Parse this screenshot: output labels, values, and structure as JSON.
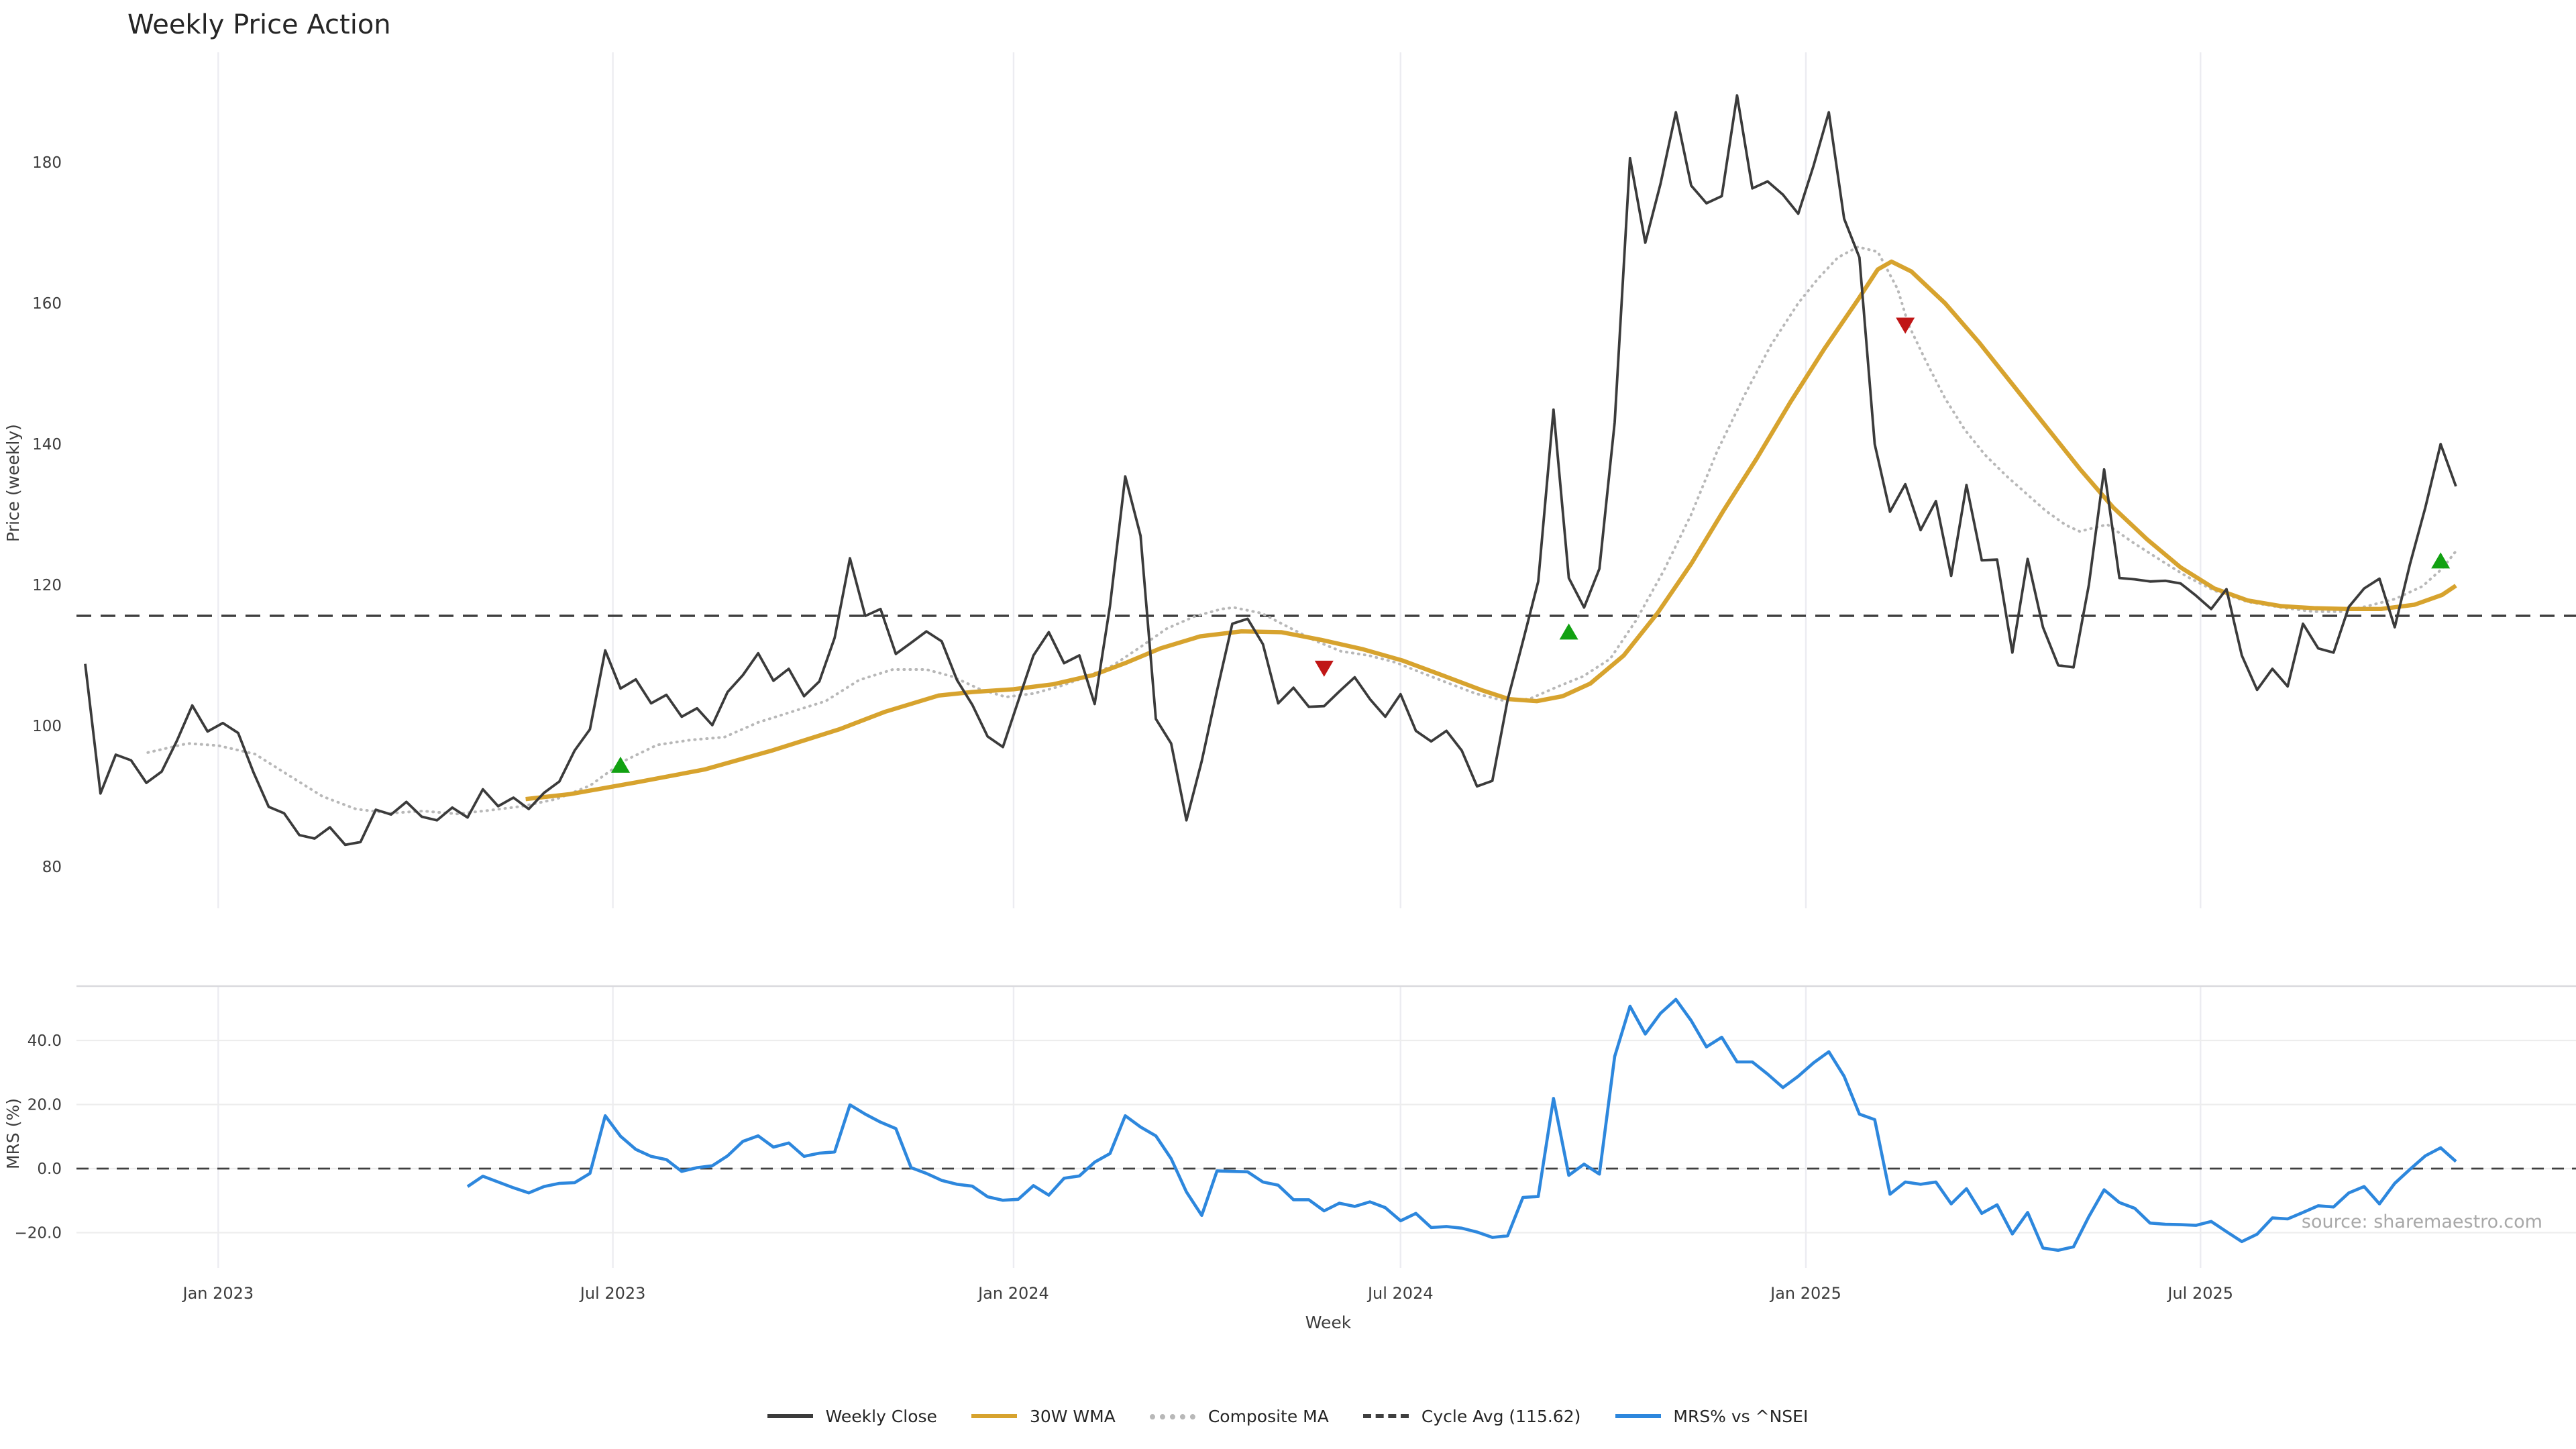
{
  "title": "Weekly Price Action",
  "source": "source: sharemaestro.com",
  "axes": {
    "top": {
      "ylabel": "Price (weekly)",
      "yticks": [
        "180",
        "160",
        "140",
        "120",
        "100",
        "80"
      ],
      "ytick_values": [
        180,
        160,
        140,
        120,
        100,
        80
      ]
    },
    "bottom": {
      "ylabel": "MRS (%)",
      "yticks": [
        "40.0",
        "20.0",
        "0.0",
        "−20.0"
      ],
      "ytick_values": [
        40,
        20,
        0,
        -20
      ]
    },
    "x": {
      "label": "Week",
      "ticks": [
        {
          "label": "Jan 2023",
          "week": 8.7
        },
        {
          "label": "Jul 2023",
          "week": 34.5
        },
        {
          "label": "Jan 2024",
          "week": 60.7
        },
        {
          "label": "Jul 2024",
          "week": 86.0
        },
        {
          "label": "Jan 2025",
          "week": 112.5
        },
        {
          "label": "Jul 2025",
          "week": 138.3
        }
      ]
    }
  },
  "legend": {
    "items": [
      {
        "label": "Weekly Close",
        "color": "#3b3b3b",
        "style": "solid"
      },
      {
        "label": "30W WMA",
        "color": "#d7a32e",
        "style": "solid"
      },
      {
        "label": "Composite MA",
        "color": "#b8b8b8",
        "style": "dotted"
      },
      {
        "label": "Cycle Avg (115.62)",
        "color": "#3f3f3f",
        "style": "dashed"
      },
      {
        "label": "MRS% vs ^NSEI",
        "color": "#2d87dd",
        "style": "solid"
      }
    ]
  },
  "colors": {
    "weekly_close": "#3b3b3b",
    "wma": "#d7a32e",
    "composite": "#b8b8b8",
    "cycle_avg": "#3f3f3f",
    "mrs": "#2d87dd",
    "signal_up": "#12a112",
    "signal_down": "#c01616",
    "grid": "#ececf1",
    "grid_h": "#ededed",
    "spine": "#d9d9de",
    "tick_text": "#3d3d3d"
  },
  "chart_data": {
    "type": "line",
    "x_unit": "week-index",
    "cycle_avg": 115.62,
    "top_ylim": [
      74,
      196
    ],
    "bottom_ylim": [
      -30,
      58
    ],
    "weekly_close": [
      108.8,
      90.4,
      95.9,
      95.1,
      91.9,
      93.5,
      97.9,
      102.9,
      99.2,
      100.4,
      99.0,
      93.4,
      88.5,
      87.6,
      84.5,
      84.0,
      85.6,
      83.1,
      83.5,
      88.1,
      87.4,
      89.2,
      87.1,
      86.6,
      88.4,
      87.0,
      91.0,
      88.6,
      89.8,
      88.2,
      90.5,
      92.1,
      96.5,
      99.5,
      110.7,
      105.3,
      106.6,
      103.2,
      104.4,
      101.3,
      102.5,
      100.1,
      104.8,
      107.2,
      110.3,
      106.4,
      108.1,
      104.2,
      106.3,
      112.5,
      123.8,
      115.6,
      116.6,
      110.2,
      111.8,
      113.4,
      112.0,
      106.5,
      103.0,
      98.5,
      97.0,
      103.5,
      110.0,
      113.3,
      108.9,
      110.0,
      103.1,
      117.0,
      135.4,
      127.0,
      101.0,
      97.5,
      86.6,
      95.0,
      105.0,
      114.5,
      115.2,
      111.6,
      103.2,
      105.4,
      102.7,
      102.8,
      104.9,
      106.9,
      103.8,
      101.3,
      104.5,
      99.3,
      97.8,
      99.3,
      96.5,
      91.4,
      92.2,
      103.7,
      112.0,
      120.5,
      144.9,
      121.0,
      116.8,
      122.3,
      143.1,
      180.6,
      168.6,
      177.0,
      187.1,
      176.7,
      174.2,
      175.2,
      189.5,
      176.3,
      177.3,
      175.4,
      172.7,
      179.5,
      187.1,
      172.0,
      166.5,
      140.0,
      130.4,
      134.3,
      127.8,
      131.9,
      121.3,
      134.2,
      123.5,
      123.6,
      110.4,
      123.7,
      114.0,
      108.6,
      108.3,
      120.0,
      136.4,
      121.0,
      120.8,
      120.5,
      120.6,
      120.2,
      118.5,
      116.6,
      119.4,
      110.0,
      105.1,
      108.1,
      105.6,
      114.5,
      111.0,
      110.4,
      116.9,
      119.5,
      120.9,
      114.0,
      123.0,
      131.0,
      140.0,
      134.0
    ],
    "wma_30w": [
      [
        28.8,
        89.6
      ],
      [
        31.7,
        90.3
      ],
      [
        36.1,
        92.0
      ],
      [
        40.5,
        93.8
      ],
      [
        44.9,
        96.5
      ],
      [
        49.3,
        99.5
      ],
      [
        52.3,
        102.0
      ],
      [
        55.8,
        104.3
      ],
      [
        58.0,
        104.8
      ],
      [
        60.7,
        105.2
      ],
      [
        63.3,
        105.9
      ],
      [
        65.9,
        107.2
      ],
      [
        68.1,
        109.0
      ],
      [
        70.3,
        111.0
      ],
      [
        72.9,
        112.7
      ],
      [
        75.6,
        113.4
      ],
      [
        78.2,
        113.3
      ],
      [
        80.8,
        112.2
      ],
      [
        83.5,
        110.9
      ],
      [
        86.1,
        109.3
      ],
      [
        88.7,
        107.2
      ],
      [
        91.4,
        105.0
      ],
      [
        93.1,
        103.8
      ],
      [
        94.9,
        103.5
      ],
      [
        96.6,
        104.2
      ],
      [
        98.4,
        106.0
      ],
      [
        100.6,
        110.0
      ],
      [
        102.8,
        116.0
      ],
      [
        105.0,
        123.0
      ],
      [
        107.1,
        130.5
      ],
      [
        109.3,
        138.0
      ],
      [
        111.5,
        146.0
      ],
      [
        113.7,
        153.5
      ],
      [
        115.9,
        160.5
      ],
      [
        117.2,
        164.8
      ],
      [
        118.1,
        165.9
      ],
      [
        119.4,
        164.5
      ],
      [
        121.6,
        160.0
      ],
      [
        123.8,
        154.5
      ],
      [
        126.0,
        148.5
      ],
      [
        128.2,
        142.5
      ],
      [
        130.4,
        136.5
      ],
      [
        132.6,
        131.0
      ],
      [
        134.8,
        126.5
      ],
      [
        137.0,
        122.5
      ],
      [
        139.2,
        119.5
      ],
      [
        141.4,
        117.8
      ],
      [
        143.6,
        117.0
      ],
      [
        145.7,
        116.7
      ],
      [
        147.9,
        116.6
      ],
      [
        150.1,
        116.6
      ],
      [
        152.3,
        117.2
      ],
      [
        154.1,
        118.6
      ],
      [
        155.0,
        119.9
      ]
    ],
    "composite_ma": [
      [
        4.1,
        96.2
      ],
      [
        6.7,
        97.5
      ],
      [
        8.7,
        97.2
      ],
      [
        11.1,
        96.0
      ],
      [
        13.3,
        93.0
      ],
      [
        15.5,
        90.0
      ],
      [
        17.7,
        88.2
      ],
      [
        19.9,
        87.6
      ],
      [
        22.1,
        87.9
      ],
      [
        24.3,
        87.5
      ],
      [
        26.4,
        88.0
      ],
      [
        28.6,
        88.6
      ],
      [
        30.8,
        89.6
      ],
      [
        33.0,
        91.5
      ],
      [
        35.2,
        95.0
      ],
      [
        37.4,
        97.3
      ],
      [
        39.6,
        98.0
      ],
      [
        41.8,
        98.4
      ],
      [
        44.0,
        100.5
      ],
      [
        46.2,
        102.0
      ],
      [
        48.4,
        103.5
      ],
      [
        50.6,
        106.5
      ],
      [
        52.8,
        108.0
      ],
      [
        55.0,
        108.0
      ],
      [
        56.7,
        107.0
      ],
      [
        58.5,
        105.2
      ],
      [
        60.2,
        104.1
      ],
      [
        62.0,
        104.6
      ],
      [
        63.7,
        105.6
      ],
      [
        65.5,
        107.0
      ],
      [
        67.2,
        108.6
      ],
      [
        69.0,
        111.2
      ],
      [
        70.7,
        113.8
      ],
      [
        72.5,
        115.5
      ],
      [
        74.3,
        116.6
      ],
      [
        75.1,
        116.8
      ],
      [
        76.9,
        116.0
      ],
      [
        78.6,
        114.1
      ],
      [
        80.4,
        112.1
      ],
      [
        82.1,
        110.6
      ],
      [
        83.9,
        110.0
      ],
      [
        85.7,
        109.0
      ],
      [
        87.4,
        107.5
      ],
      [
        89.2,
        106.0
      ],
      [
        90.9,
        104.6
      ],
      [
        92.7,
        103.6
      ],
      [
        94.4,
        103.8
      ],
      [
        96.2,
        105.5
      ],
      [
        97.9,
        107.0
      ],
      [
        99.7,
        109.5
      ],
      [
        101.4,
        115.0
      ],
      [
        103.2,
        122.0
      ],
      [
        105.0,
        130.0
      ],
      [
        106.7,
        139.0
      ],
      [
        108.5,
        147.0
      ],
      [
        110.2,
        154.0
      ],
      [
        112.0,
        160.0
      ],
      [
        113.3,
        163.5
      ],
      [
        114.6,
        166.5
      ],
      [
        115.9,
        168.0
      ],
      [
        117.2,
        167.3
      ],
      [
        118.5,
        162.0
      ],
      [
        119.2,
        157.0
      ],
      [
        120.3,
        152.0
      ],
      [
        121.6,
        146.5
      ],
      [
        122.9,
        142.0
      ],
      [
        124.2,
        138.5
      ],
      [
        125.6,
        135.5
      ],
      [
        126.9,
        133.0
      ],
      [
        128.2,
        130.5
      ],
      [
        129.5,
        128.5
      ],
      [
        130.4,
        127.6
      ],
      [
        132.2,
        128.6
      ],
      [
        133.9,
        126.0
      ],
      [
        135.7,
        123.5
      ],
      [
        137.4,
        121.2
      ],
      [
        139.2,
        119.2
      ],
      [
        141.4,
        117.6
      ],
      [
        143.6,
        116.8
      ],
      [
        145.7,
        116.2
      ],
      [
        147.5,
        116.2
      ],
      [
        149.2,
        117.0
      ],
      [
        151.0,
        118.0
      ],
      [
        152.8,
        119.8
      ],
      [
        154.1,
        122.3
      ],
      [
        155.0,
        124.8
      ]
    ],
    "mrs_start_week": 25,
    "mrs": [
      -5.6,
      -2.4,
      -4.2,
      -6.0,
      -7.6,
      -5.6,
      -4.6,
      -4.4,
      -1.5,
      16.5,
      10.1,
      6.0,
      3.8,
      2.8,
      -0.9,
      0.3,
      0.9,
      4.0,
      8.5,
      10.2,
      6.7,
      8.0,
      3.8,
      4.8,
      5.2,
      19.9,
      17.0,
      14.5,
      12.5,
      0.3,
      -1.5,
      -3.7,
      -4.9,
      -5.5,
      -8.8,
      -9.9,
      -9.6,
      -5.3,
      -8.3,
      -3.0,
      -2.3,
      2.0,
      4.7,
      16.5,
      13.0,
      10.2,
      3.1,
      -7.3,
      -14.6,
      -0.7,
      -0.9,
      -1.0,
      -4.2,
      -5.2,
      -9.7,
      -9.7,
      -13.2,
      -10.8,
      -11.8,
      -10.4,
      -12.2,
      -16.3,
      -14.0,
      -18.4,
      -18.1,
      -18.6,
      -19.8,
      -21.5,
      -21.0,
      -9.0,
      -8.7,
      21.9,
      -2.1,
      1.4,
      -1.7,
      35.0,
      50.7,
      42.0,
      48.5,
      52.8,
      46.2,
      38.0,
      41.0,
      33.3,
      33.3,
      29.5,
      25.3,
      28.8,
      33.0,
      36.5,
      28.8,
      17.0,
      15.3,
      -8.0,
      -4.2,
      -4.9,
      -4.2,
      -11.0,
      -6.3,
      -14.0,
      -11.3,
      -20.4,
      -13.7,
      -24.8,
      -25.5,
      -24.4,
      -15.0,
      -6.6,
      -10.6,
      -12.4,
      -17.0,
      -17.4,
      -17.5,
      -17.7,
      -16.5,
      -19.7,
      -22.8,
      -20.5,
      -15.4,
      -15.7,
      -13.7,
      -11.6,
      -12.0,
      -7.6,
      -5.6,
      -11.0,
      -4.6,
      -0.2,
      4.0,
      6.5,
      2.2
    ],
    "signals": [
      {
        "week": 35,
        "value": 94.3,
        "direction": "up"
      },
      {
        "week": 81,
        "value": 108.3,
        "direction": "down"
      },
      {
        "week": 97,
        "value": 113.2,
        "direction": "up"
      },
      {
        "week": 119,
        "value": 157.0,
        "direction": "down"
      },
      {
        "week": 154,
        "value": 123.3,
        "direction": "up"
      }
    ]
  }
}
